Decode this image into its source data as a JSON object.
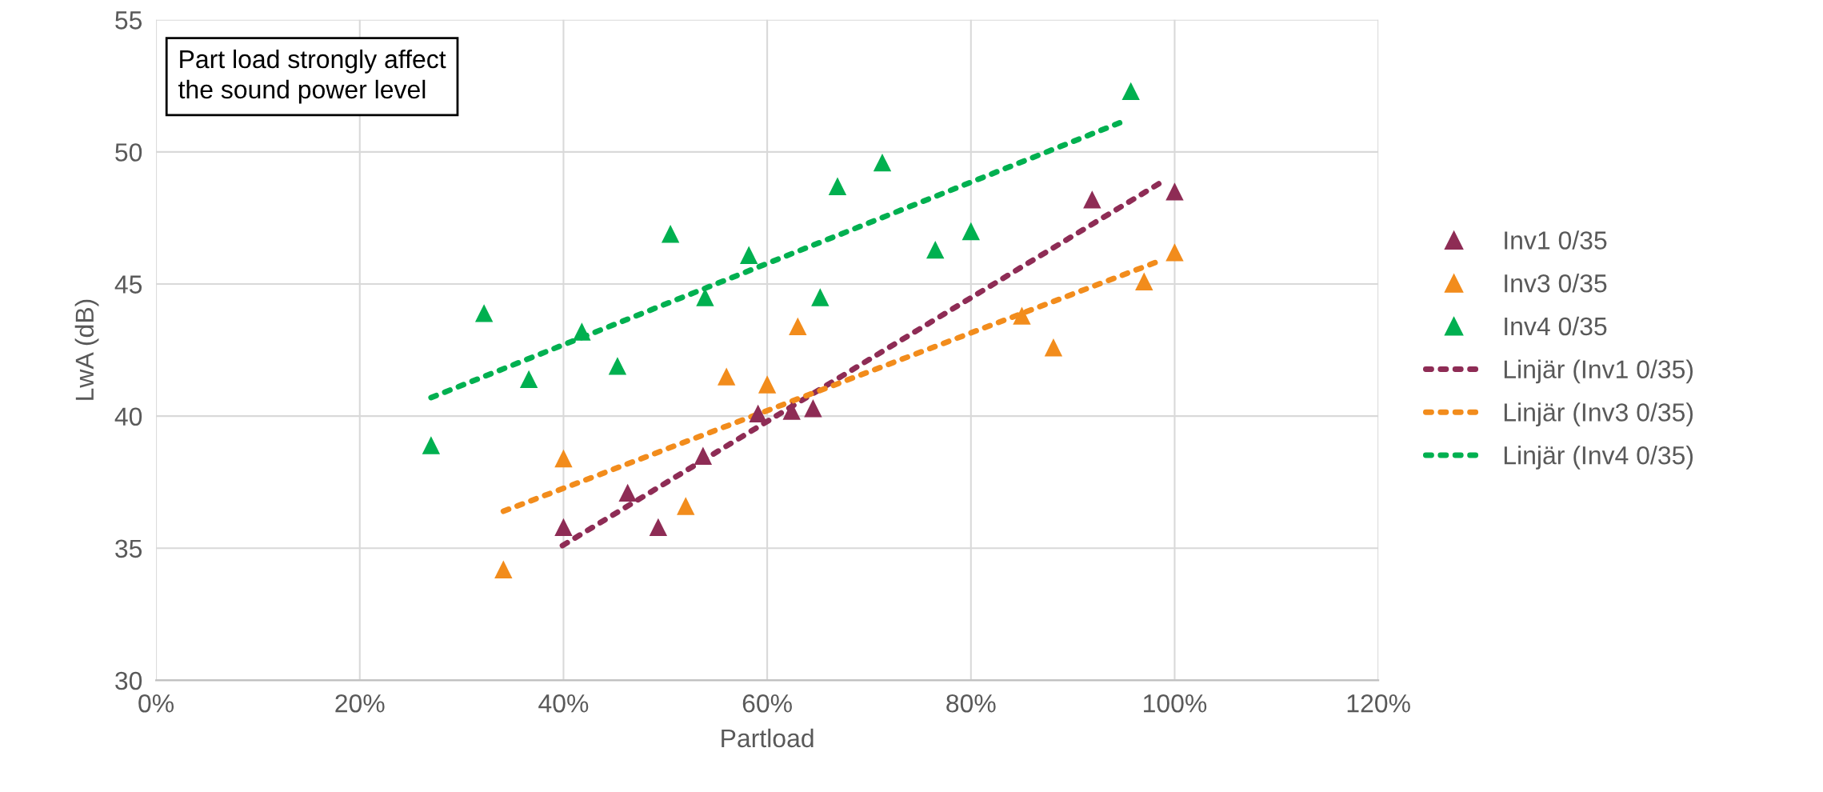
{
  "chart_data": {
    "type": "scatter",
    "xlabel": "Partload",
    "ylabel": "LwA (dB)",
    "annotations": [
      "Part load strongly affect\nthe sound power level"
    ],
    "xlim": [
      0,
      120
    ],
    "xticks": [
      {
        "value": 0,
        "label": "0%"
      },
      {
        "value": 20,
        "label": "20%"
      },
      {
        "value": 40,
        "label": "40%"
      },
      {
        "value": 60,
        "label": "60%"
      },
      {
        "value": 80,
        "label": "80%"
      },
      {
        "value": 100,
        "label": "100%"
      },
      {
        "value": 120,
        "label": "120%"
      }
    ],
    "ylim": [
      30,
      55
    ],
    "yticks": [
      30,
      35,
      40,
      45,
      50,
      55
    ],
    "grid": true,
    "legend": "right",
    "marker": "triangle",
    "series": [
      {
        "name": "Inv1 0/35",
        "color": "#8e2c55",
        "x": [
          40,
          46.3,
          49.3,
          53.7,
          59.1,
          62.4,
          64.5,
          91.9,
          100
        ],
        "values": [
          35.8,
          37.1,
          35.8,
          38.5,
          40.1,
          40.2,
          40.3,
          48.2,
          48.5
        ]
      },
      {
        "name": "Inv3 0/35",
        "color": "#f28c1c",
        "x": [
          34.1,
          40,
          52,
          56,
          60,
          63,
          85,
          88.1,
          97,
          100
        ],
        "values": [
          34.2,
          38.4,
          36.6,
          41.5,
          41.2,
          43.4,
          43.8,
          42.6,
          45.1,
          46.2
        ]
      },
      {
        "name": "Inv4 0/35",
        "color": "#00b050",
        "x": [
          27,
          32.2,
          36.6,
          41.8,
          45.3,
          50.5,
          53.9,
          58.2,
          65.2,
          66.9,
          71.3,
          76.5,
          80,
          95.7
        ],
        "values": [
          38.9,
          43.9,
          41.4,
          43.2,
          41.9,
          46.9,
          44.5,
          46.1,
          44.5,
          48.7,
          49.6,
          46.3,
          47.0,
          52.3
        ]
      },
      {
        "name": "Linjär (Inv1 0/35)",
        "type": "line",
        "marker": "none",
        "line_style": "dotted",
        "color": "#8e2c55",
        "x": [
          39.9,
          98.9
        ],
        "values": [
          35.1,
          48.9
        ]
      },
      {
        "name": "Linjär (Inv3 0/35)",
        "type": "line",
        "marker": "none",
        "line_style": "dotted",
        "color": "#f28c1c",
        "x": [
          34.1,
          98.7
        ],
        "values": [
          36.4,
          45.9
        ]
      },
      {
        "name": "Linjär (Inv4 0/35)",
        "type": "line",
        "marker": "none",
        "line_style": "dotted",
        "color": "#00b050",
        "x": [
          27,
          94.6
        ],
        "values": [
          40.7,
          51.1
        ]
      }
    ]
  }
}
